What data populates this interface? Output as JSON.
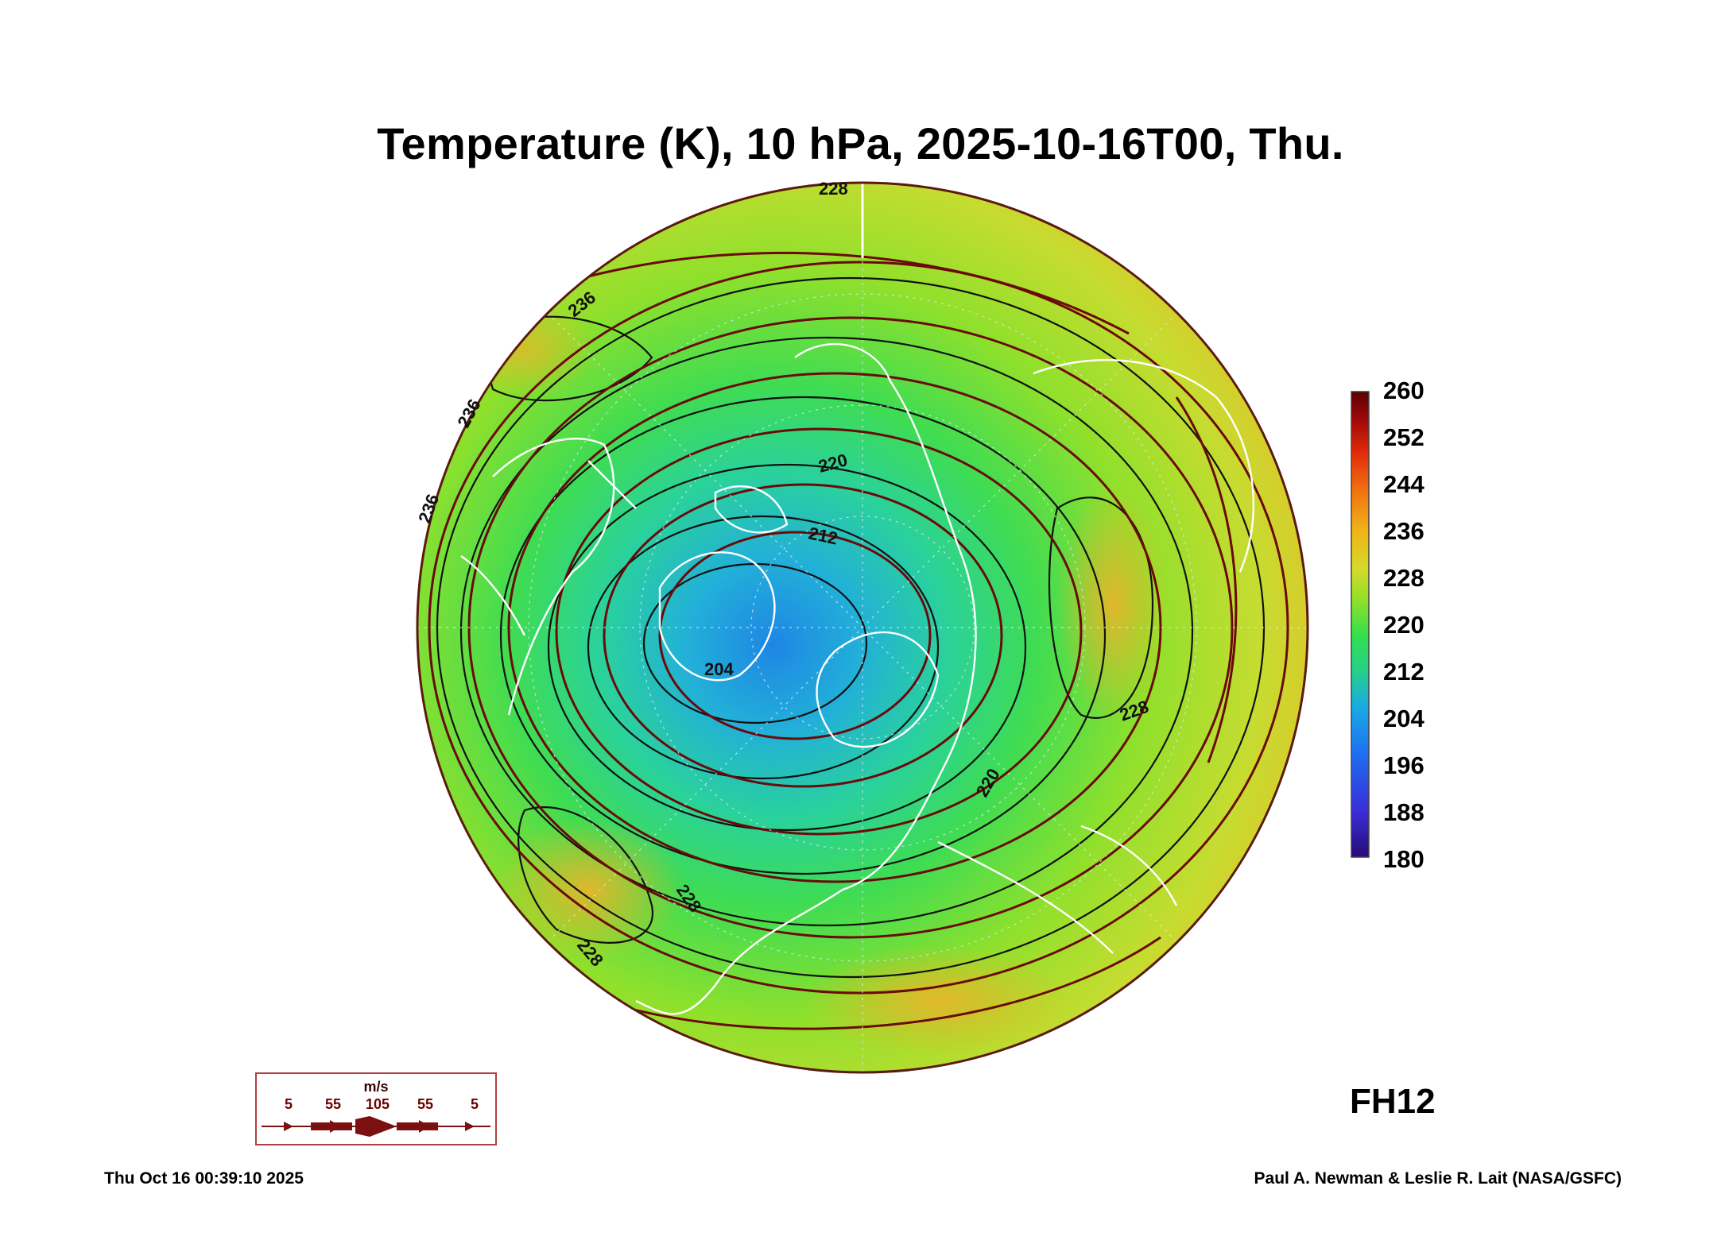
{
  "title": "Temperature (K), 10 hPa, 2025-10-16T00, Thu.",
  "colorbar": {
    "labels": [
      "260",
      "252",
      "244",
      "236",
      "228",
      "220",
      "212",
      "204",
      "196",
      "188",
      "180"
    ],
    "min": 180,
    "max": 260,
    "colors": [
      "#2a0b78",
      "#3a2ed8",
      "#1e6ef0",
      "#19a9e6",
      "#25d08a",
      "#36e04a",
      "#8ee02a",
      "#d6d92a",
      "#f0b418",
      "#f07010",
      "#e02a0a",
      "#a00808",
      "#5a0000"
    ]
  },
  "contour_labels": [
    "236",
    "236",
    "236",
    "228",
    "228",
    "228",
    "228",
    "220",
    "220",
    "212",
    "204"
  ],
  "wind_legend": {
    "unit": "m/s",
    "ticks": [
      "5",
      "55",
      "105",
      "55",
      "5"
    ]
  },
  "forecast_hour": "FH12",
  "footer": {
    "timestamp": "Thu Oct 16 00:39:10 2025",
    "credit": "Paul A. Newman & Leslie R. Lait (NASA/GSFC)"
  },
  "colors": {
    "streamline": "#6a0a0a",
    "contour": "#111111",
    "coastline": "#ffffff",
    "cold_core": "#1a8fe0",
    "warm_rim": "#e8a020"
  }
}
